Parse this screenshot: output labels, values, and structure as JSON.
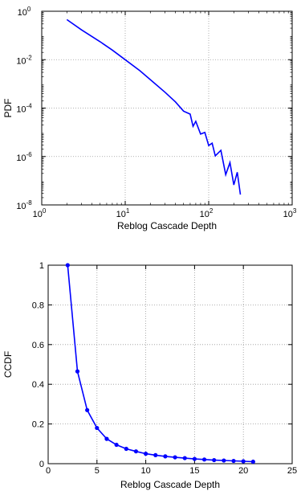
{
  "chart_data": [
    {
      "type": "line",
      "xscale": "log",
      "yscale": "log",
      "xlabel": "Reblog Cascade Depth",
      "ylabel": "PDF",
      "xlim": [
        1,
        1000
      ],
      "ylim": [
        1e-08,
        1
      ],
      "grid": true,
      "x_ticks": [
        {
          "base": "10",
          "exp": "0",
          "value": 1
        },
        {
          "base": "10",
          "exp": "1",
          "value": 10
        },
        {
          "base": "10",
          "exp": "2",
          "value": 100
        },
        {
          "base": "10",
          "exp": "3",
          "value": 1000
        }
      ],
      "y_ticks": [
        {
          "base": "10",
          "exp": "0",
          "value": 1
        },
        {
          "base": "10",
          "exp": "-2",
          "value": 0.01
        },
        {
          "base": "10",
          "exp": "-4",
          "value": 0.0001
        },
        {
          "base": "10",
          "exp": "-6",
          "value": 1e-06
        },
        {
          "base": "10",
          "exp": "-8",
          "value": 1e-08
        }
      ],
      "series": [
        {
          "color": "#0000ff",
          "x": [
            2,
            3,
            5,
            7,
            10,
            15,
            20,
            30,
            40,
            50,
            60,
            65,
            70,
            80,
            90,
            100,
            110,
            120,
            140,
            160,
            180,
            200,
            220,
            240
          ],
          "y": [
            0.45,
            0.17,
            0.055,
            0.025,
            0.01,
            0.0035,
            0.0015,
            0.00045,
            0.00018,
            7.5e-05,
            4e-05,
            2.5e-05,
            2e-05,
            1.2e-05,
            7e-06,
            4e-06,
            2.5e-06,
            1.5e-06,
            8e-07,
            4e-07,
            2.5e-07,
            1.5e-07,
            1e-07,
            6e-08
          ]
        }
      ]
    },
    {
      "type": "line",
      "xlabel": "Reblog Cascade Depth",
      "ylabel": "CCDF",
      "xlim": [
        0,
        25
      ],
      "ylim": [
        0,
        1
      ],
      "grid": true,
      "x_ticks": [
        "0",
        "5",
        "10",
        "15",
        "20",
        "25"
      ],
      "y_ticks": [
        "0",
        "0.2",
        "0.4",
        "0.6",
        "0.8",
        "1"
      ],
      "series": [
        {
          "color": "#0000ff",
          "marker": "dot",
          "x": [
            2,
            3,
            4,
            5,
            6,
            7,
            8,
            9,
            10,
            11,
            12,
            13,
            14,
            15,
            16,
            17,
            18,
            19,
            20,
            21
          ],
          "y": [
            1.0,
            0.465,
            0.27,
            0.18,
            0.125,
            0.095,
            0.075,
            0.062,
            0.05,
            0.043,
            0.037,
            0.032,
            0.028,
            0.024,
            0.021,
            0.018,
            0.016,
            0.014,
            0.012,
            0.01
          ]
        }
      ]
    }
  ]
}
